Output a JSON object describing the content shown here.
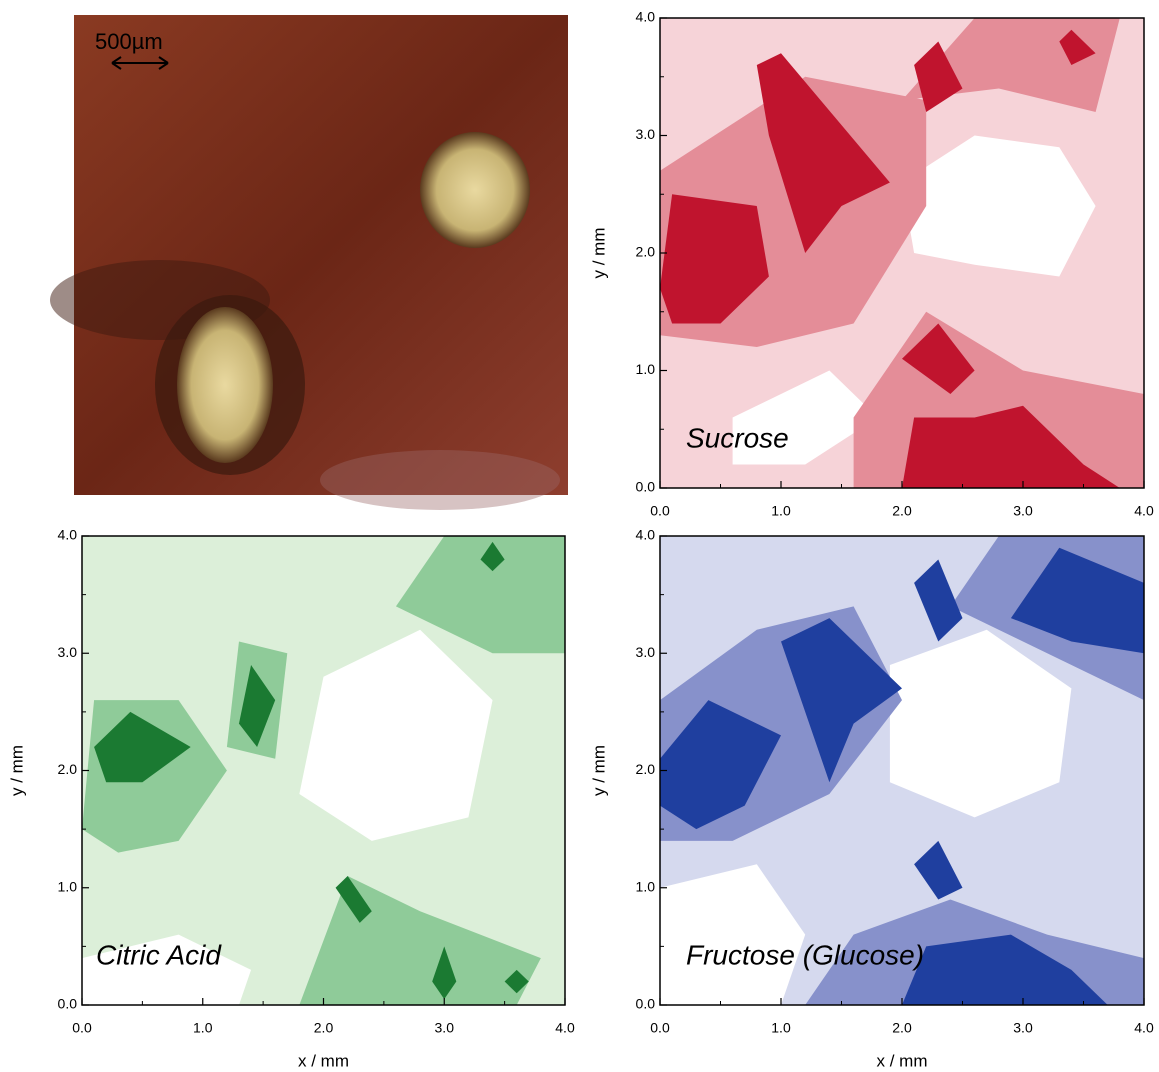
{
  "image_panel": {
    "scale_bar_label": "500µm"
  },
  "chart_data": [
    {
      "type": "contour",
      "annotation": "Sucrose",
      "ylabel": "y / mm",
      "colors": [
        "#f6d3d8",
        "#e48d98",
        "#c0142e"
      ],
      "xlim": [
        0,
        4
      ],
      "ylim": [
        0,
        4
      ],
      "xticks": [
        {
          "value": 0,
          "label": "0.0"
        },
        {
          "value": 1,
          "label": "1.0"
        },
        {
          "value": 2,
          "label": "2.0"
        },
        {
          "value": 3,
          "label": "3.0"
        },
        {
          "value": 4,
          "label": "4.0"
        }
      ],
      "yticks": [
        {
          "value": 0,
          "label": "0.0"
        },
        {
          "value": 1,
          "label": "1.0"
        },
        {
          "value": 2,
          "label": "2.0"
        },
        {
          "value": 3,
          "label": "3.0"
        },
        {
          "value": 4,
          "label": "4.0"
        }
      ]
    },
    {
      "type": "contour",
      "annotation": "Citric Acid",
      "xlabel": "x / mm",
      "ylabel": "y / mm",
      "colors": [
        "#dcefd9",
        "#8fcb99",
        "#1b7a32"
      ],
      "xlim": [
        0,
        4
      ],
      "ylim": [
        0,
        4
      ],
      "xticks": [
        {
          "value": 0,
          "label": "0.0"
        },
        {
          "value": 1,
          "label": "1.0"
        },
        {
          "value": 2,
          "label": "2.0"
        },
        {
          "value": 3,
          "label": "3.0"
        },
        {
          "value": 4,
          "label": "4.0"
        }
      ],
      "yticks": [
        {
          "value": 0,
          "label": "0.0"
        },
        {
          "value": 1,
          "label": "1.0"
        },
        {
          "value": 2,
          "label": "2.0"
        },
        {
          "value": 3,
          "label": "3.0"
        },
        {
          "value": 4,
          "label": "4.0"
        }
      ]
    },
    {
      "type": "contour",
      "annotation": "Fructose (Glucose)",
      "xlabel": "x / mm",
      "ylabel": "y / mm",
      "colors": [
        "#d5d9ee",
        "#8791cb",
        "#1f3f9f"
      ],
      "xlim": [
        0,
        4
      ],
      "ylim": [
        0,
        4
      ],
      "xticks": [
        {
          "value": 0,
          "label": "0.0"
        },
        {
          "value": 1,
          "label": "1.0"
        },
        {
          "value": 2,
          "label": "2.0"
        },
        {
          "value": 3,
          "label": "3.0"
        },
        {
          "value": 4,
          "label": "4.0"
        }
      ],
      "yticks": [
        {
          "value": 0,
          "label": "0.0"
        },
        {
          "value": 1,
          "label": "1.0"
        },
        {
          "value": 2,
          "label": "2.0"
        },
        {
          "value": 3,
          "label": "3.0"
        },
        {
          "value": 4,
          "label": "4.0"
        }
      ]
    }
  ]
}
